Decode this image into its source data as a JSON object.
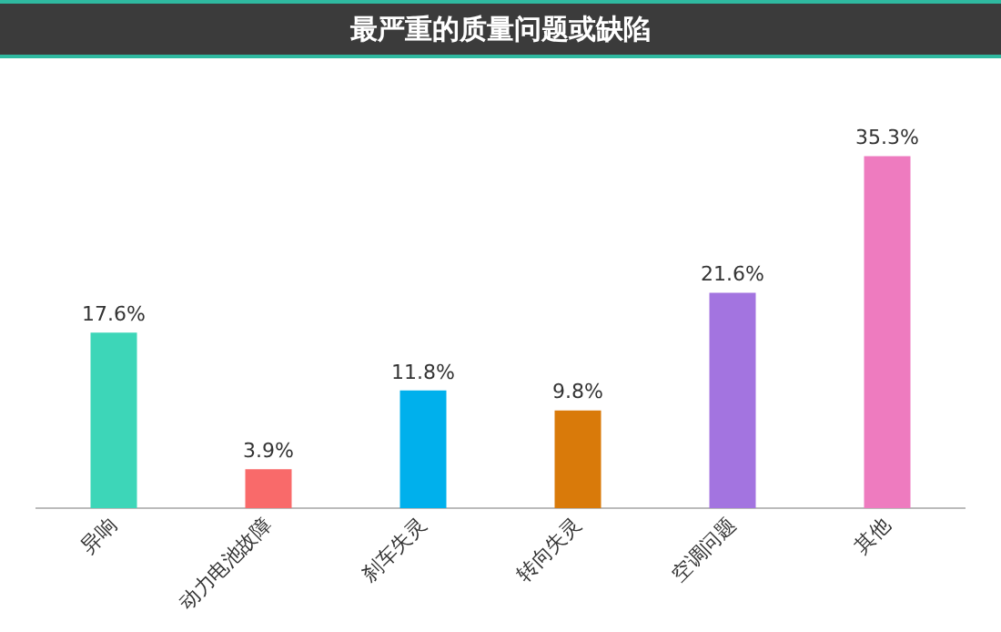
{
  "chart_data": {
    "type": "bar",
    "title": "最严重的质量问题或缺陷",
    "categories": [
      "异响",
      "动力电池故障",
      "刹车失灵",
      "转向失灵",
      "空调问题",
      "其他"
    ],
    "values": [
      17.6,
      3.9,
      11.8,
      9.8,
      21.6,
      35.3
    ],
    "colors": [
      "#3dd6b8",
      "#f96a6a",
      "#00b0ec",
      "#d97a0a",
      "#a374e0",
      "#ee7bbf"
    ],
    "value_labels": [
      "17.6%",
      "3.9%",
      "11.8%",
      "9.8%",
      "21.6%",
      "35.3%"
    ],
    "grid": false,
    "legend": false,
    "tick_labels": "x"
  }
}
